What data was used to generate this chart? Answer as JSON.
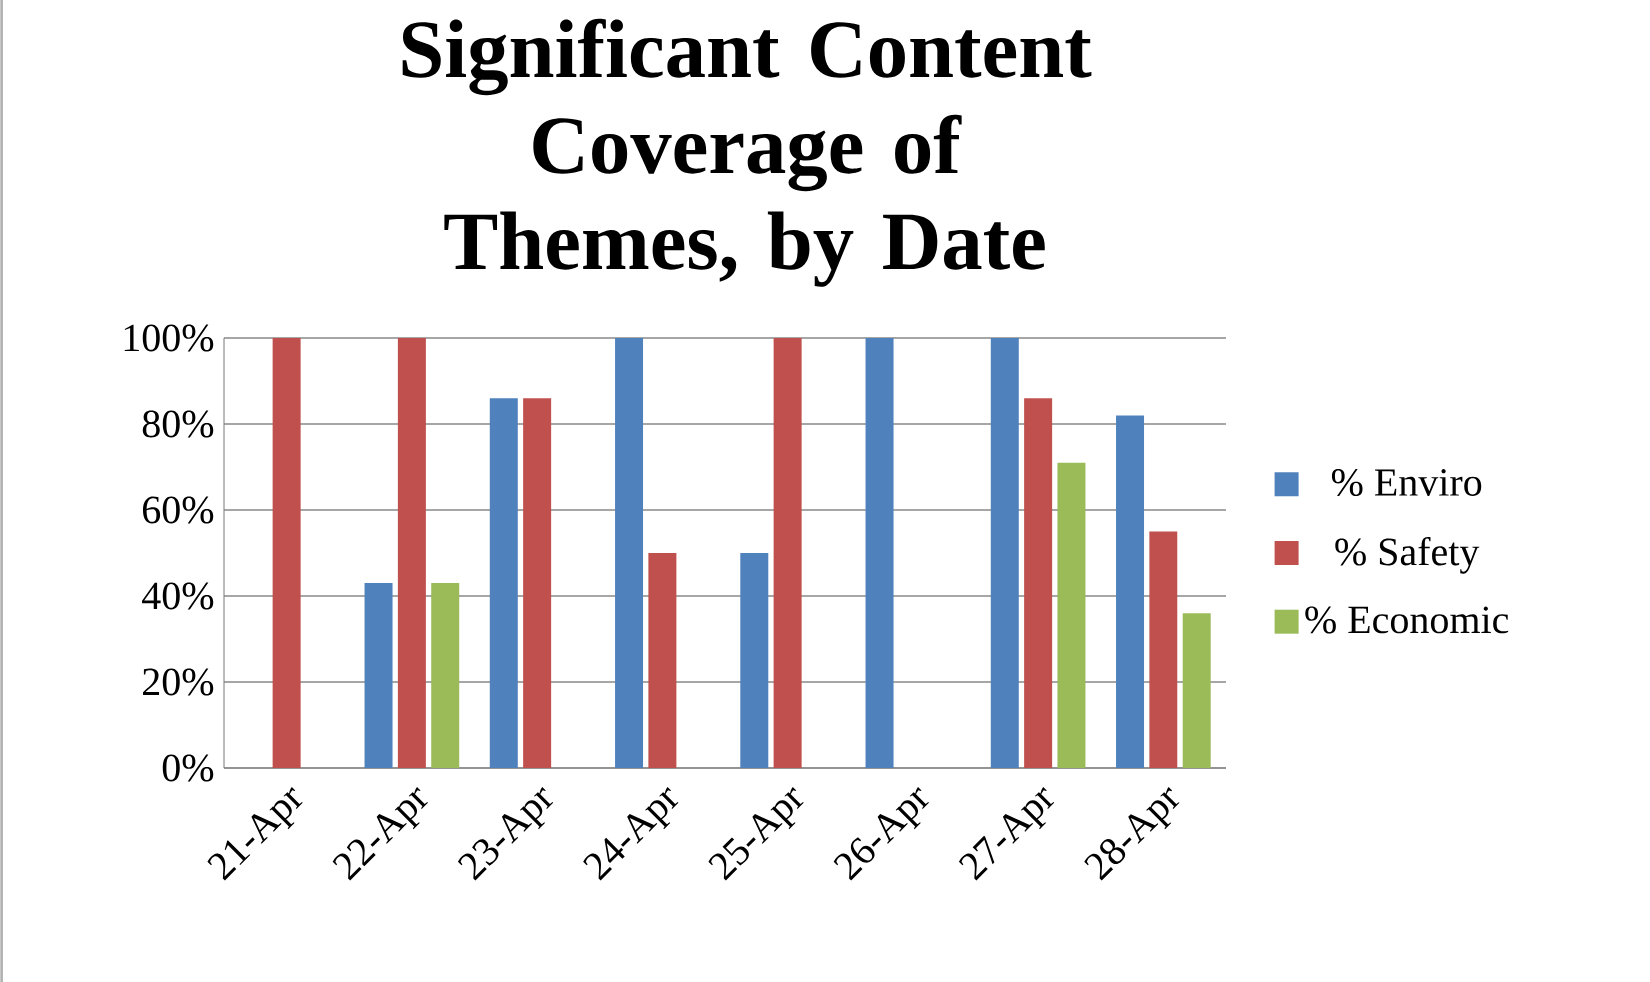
{
  "chart_data": {
    "type": "bar",
    "title": "Significant Content Coverage of Themes, by Date",
    "categories": [
      "21-Apr",
      "22-Apr",
      "23-Apr",
      "24-Apr",
      "25-Apr",
      "26-Apr",
      "27-Apr",
      "28-Apr"
    ],
    "series": [
      {
        "name": "% Enviro",
        "color": "#4f81bd",
        "values": [
          0,
          43,
          86,
          100,
          50,
          100,
          100,
          82
        ]
      },
      {
        "name": "% Safety",
        "color": "#c0504d",
        "values": [
          100,
          100,
          86,
          50,
          100,
          0,
          86,
          55
        ]
      },
      {
        "name": "% Economic",
        "color": "#9bbb59",
        "values": [
          0,
          43,
          0,
          0,
          0,
          0,
          71,
          36
        ]
      }
    ],
    "ylim": [
      0,
      100
    ],
    "yticks": [
      {
        "value": 0,
        "label": "0%"
      },
      {
        "value": 20,
        "label": "20%"
      },
      {
        "value": 40,
        "label": "40%"
      },
      {
        "value": 60,
        "label": "60%"
      },
      {
        "value": 80,
        "label": "80%"
      },
      {
        "value": 100,
        "label": "100%"
      }
    ],
    "grid": "y",
    "legend": "right"
  }
}
